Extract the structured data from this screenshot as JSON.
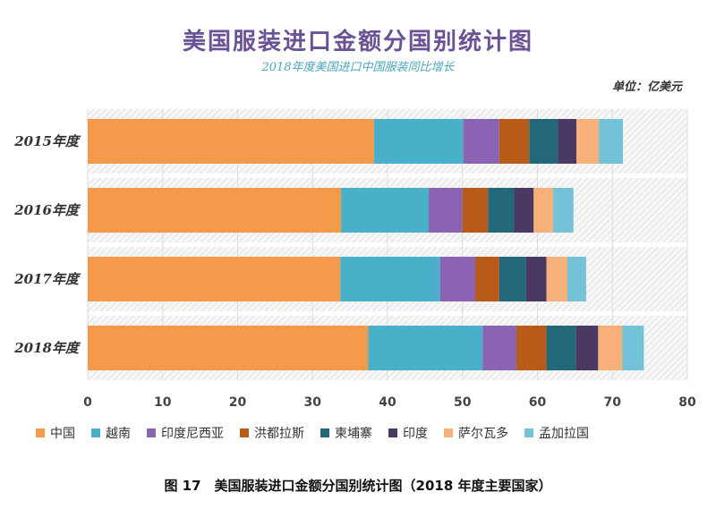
{
  "header": {
    "title": "美国服装进口金额分国别统计图",
    "subtitle": "2018年度美国进口中国服装同比增长",
    "unit": "单位：亿美元"
  },
  "caption": "图 17　美国服装进口金额分国别统计图（2018 年度主要国家）",
  "chart_data": {
    "type": "bar",
    "orientation": "horizontal",
    "stacked": true,
    "title": "美国服装进口金额分国别统计图",
    "subtitle": "2018年度美国进口中国服装同比增长",
    "unit": "单位：亿美元",
    "categories": [
      "2015年度",
      "2016年度",
      "2017年度",
      "2018年度"
    ],
    "xlim": [
      0,
      80
    ],
    "xticks": [
      0,
      10,
      20,
      30,
      40,
      50,
      60,
      70,
      80
    ],
    "grid": true,
    "legend_position": "bottom",
    "series": [
      {
        "name": "中国",
        "color": "#f59a4a",
        "values": [
          38.2,
          33.8,
          33.7,
          37.4
        ]
      },
      {
        "name": "越南",
        "color": "#4aafc8",
        "values": [
          11.9,
          11.7,
          13.3,
          15.3
        ]
      },
      {
        "name": "印度尼西亚",
        "color": "#8b63b3",
        "values": [
          4.8,
          4.5,
          4.7,
          4.5
        ]
      },
      {
        "name": "洪都拉斯",
        "color": "#b85a18",
        "values": [
          4.0,
          3.4,
          3.2,
          4.0
        ]
      },
      {
        "name": "柬埔寨",
        "color": "#226878",
        "values": [
          3.8,
          3.5,
          3.6,
          3.9
        ]
      },
      {
        "name": "印度",
        "color": "#4a3a62",
        "values": [
          2.5,
          2.6,
          2.7,
          3.0
        ]
      },
      {
        "name": "萨尔瓦多",
        "color": "#f7b07a",
        "values": [
          3.0,
          2.6,
          2.8,
          3.2
        ]
      },
      {
        "name": "孟加拉国",
        "color": "#73c2d8",
        "values": [
          3.2,
          2.7,
          2.5,
          2.9
        ]
      }
    ]
  }
}
